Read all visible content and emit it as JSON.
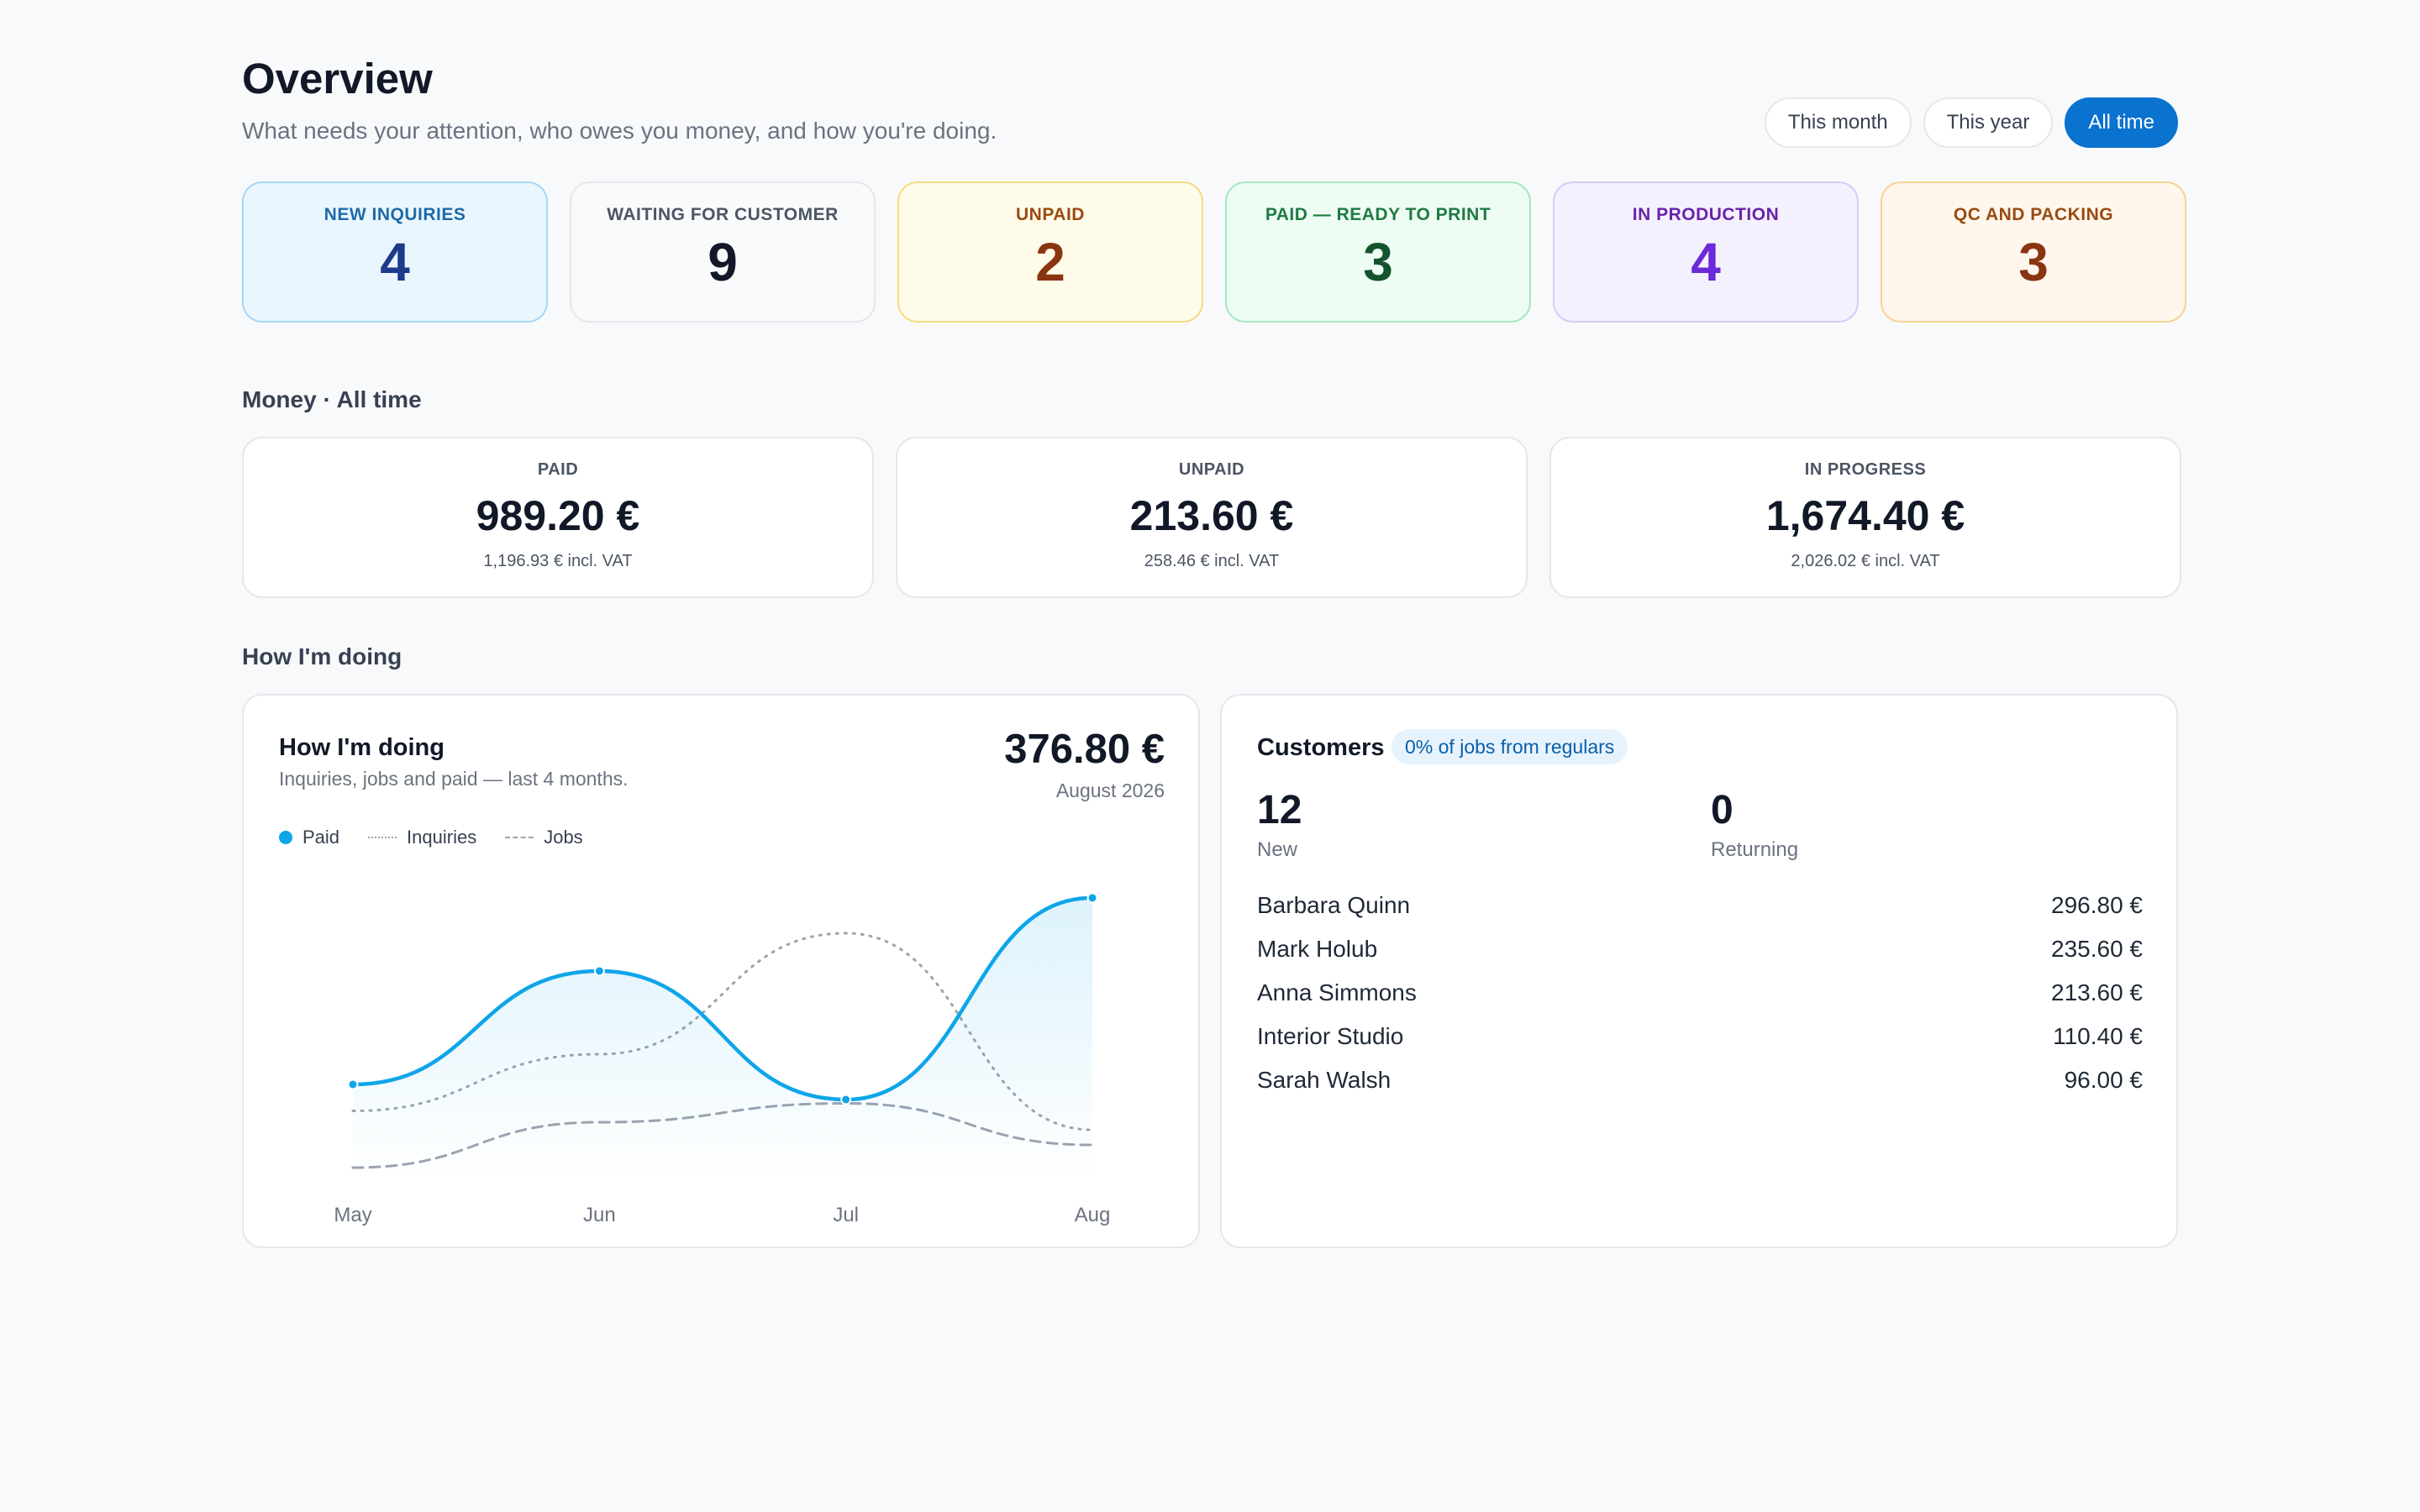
{
  "header": {
    "title": "Overview",
    "subtitle": "What needs your attention, who owes you money, and how you're doing."
  },
  "filters": [
    {
      "label": "This month",
      "active": false
    },
    {
      "label": "This year",
      "active": false
    },
    {
      "label": "All time",
      "active": true
    }
  ],
  "status_cards": [
    {
      "label": "NEW INQUIRIES",
      "value": "4",
      "bg": "#eaf6fe",
      "border": "#a8d8f5",
      "label_color": "#1e6aa8",
      "value_color": "#1e3a8a"
    },
    {
      "label": "WAITING FOR CUSTOMER",
      "value": "9",
      "bg": "#f9fafb",
      "border": "#e5e7eb",
      "label_color": "#4b5563",
      "value_color": "#111827"
    },
    {
      "label": "UNPAID",
      "value": "2",
      "bg": "#fefce8",
      "border": "#f6dc85",
      "label_color": "#9a4a10",
      "value_color": "#8a3412"
    },
    {
      "label": "PAID — READY TO PRINT",
      "value": "3",
      "bg": "#edfdf3",
      "border": "#a6e8bf",
      "label_color": "#1f7a45",
      "value_color": "#14532d"
    },
    {
      "label": "IN PRODUCTION",
      "value": "4",
      "bg": "#f4f1fe",
      "border": "#d8ccf7",
      "label_color": "#6b21a8",
      "value_color": "#6d28d9"
    },
    {
      "label": "QC AND PACKING",
      "value": "3",
      "bg": "#fff7ed",
      "border": "#f8d392",
      "label_color": "#9a4a10",
      "value_color": "#8a3412"
    }
  ],
  "money": {
    "section_title": "Money · All time",
    "cards": [
      {
        "label": "PAID",
        "value": "989.20 €",
        "vat": "1,196.93 € incl. VAT"
      },
      {
        "label": "UNPAID",
        "value": "213.60 €",
        "vat": "258.46 € incl. VAT"
      },
      {
        "label": "IN PROGRESS",
        "value": "1,674.40 €",
        "vat": "2,026.02 € incl. VAT"
      }
    ]
  },
  "doing": {
    "section_title": "How I'm doing",
    "chart_title": "How I'm doing",
    "chart_subtitle": "Inquiries, jobs and paid — last 4 months.",
    "total": "376.80 €",
    "period": "August 2026",
    "legend": {
      "paid": "Paid",
      "inquiries": "Inquiries",
      "jobs": "Jobs"
    }
  },
  "chart_data": {
    "type": "line",
    "categories": [
      "May",
      "Jun",
      "Jul",
      "Aug"
    ],
    "series": [
      {
        "name": "Paid",
        "values": [
          130,
          280,
          110,
          376.8
        ],
        "style": "solid-area",
        "color": "#0ea5e9"
      },
      {
        "name": "Inquiries",
        "values": [
          95,
          170,
          330,
          70
        ],
        "style": "dotted",
        "color": "#9ca3af"
      },
      {
        "name": "Jobs",
        "values": [
          20,
          80,
          105,
          50
        ],
        "style": "dashed",
        "color": "#9ca3af"
      }
    ],
    "ylim": [
      0,
      400
    ],
    "grid": false,
    "legend_position": "top-left"
  },
  "customers": {
    "title": "Customers",
    "badge": "0% of jobs from regulars",
    "new_value": "12",
    "new_label": "New",
    "returning_value": "0",
    "returning_label": "Returning",
    "list": [
      {
        "name": "Barbara Quinn",
        "amount": "296.80 €"
      },
      {
        "name": "Mark Holub",
        "amount": "235.60 €"
      },
      {
        "name": "Anna Simmons",
        "amount": "213.60 €"
      },
      {
        "name": "Interior Studio",
        "amount": "110.40 €"
      },
      {
        "name": "Sarah Walsh",
        "amount": "96.00 €"
      }
    ]
  }
}
